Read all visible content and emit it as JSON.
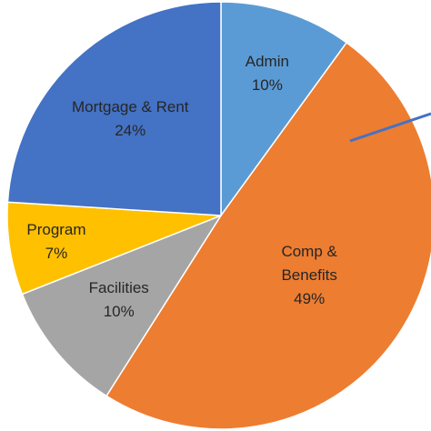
{
  "chart_data": {
    "type": "pie",
    "categories": [
      "Admin",
      "Comp & Benefits",
      "Facilities",
      "Program",
      "Mortgage & Rent"
    ],
    "values": [
      10,
      49,
      10,
      7,
      24
    ],
    "value_labels": [
      "10%",
      "49%",
      "10%",
      "7%",
      "24%"
    ],
    "colors": [
      "#5b9bd5",
      "#ed7d31",
      "#a5a5a5",
      "#ffc000",
      "#4472c4"
    ]
  }
}
